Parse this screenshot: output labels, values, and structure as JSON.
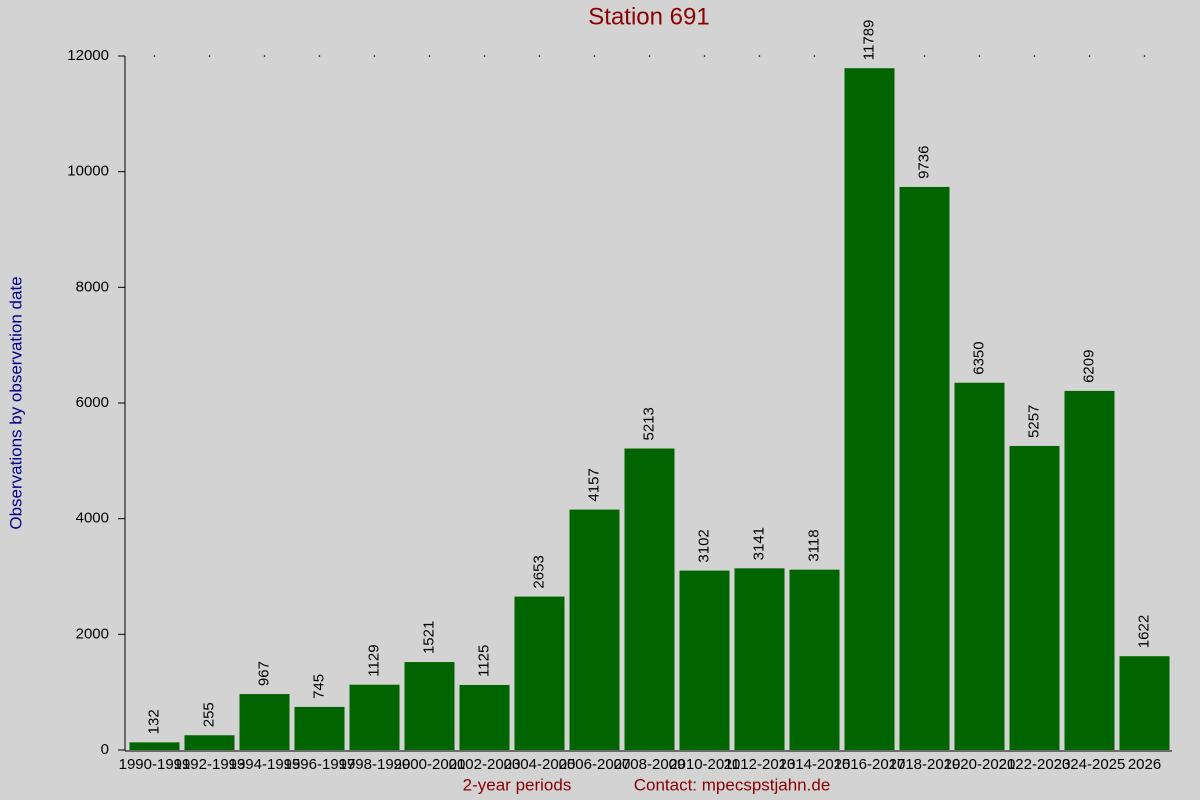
{
  "chart_data": {
    "type": "bar",
    "title": "Station 691",
    "y_label": "Observations by observation date",
    "x_label": "2-year periods",
    "contact": "Contact: mpecspstjahn.de",
    "categories": [
      "1990-1991",
      "1992-1993",
      "1994-1995",
      "1996-1997",
      "1998-1999",
      "2000-2001",
      "2002-2003",
      "2004-2005",
      "2006-2007",
      "2008-2009",
      "2010-2011",
      "2012-2013",
      "2014-2015",
      "2016-2017",
      "2018-2019",
      "2020-2021",
      "2022-2023",
      "2024-2025",
      "2026"
    ],
    "values": [
      132,
      255,
      967,
      745,
      1129,
      1521,
      1125,
      2653,
      4157,
      5213,
      3102,
      3141,
      3118,
      11789,
      9736,
      6350,
      5257,
      6209,
      1622
    ],
    "color": "#006400",
    "ylim": [
      0,
      12000
    ],
    "yticks": [
      0,
      2000,
      4000,
      6000,
      8000,
      10000,
      12000
    ],
    "grid": false
  }
}
